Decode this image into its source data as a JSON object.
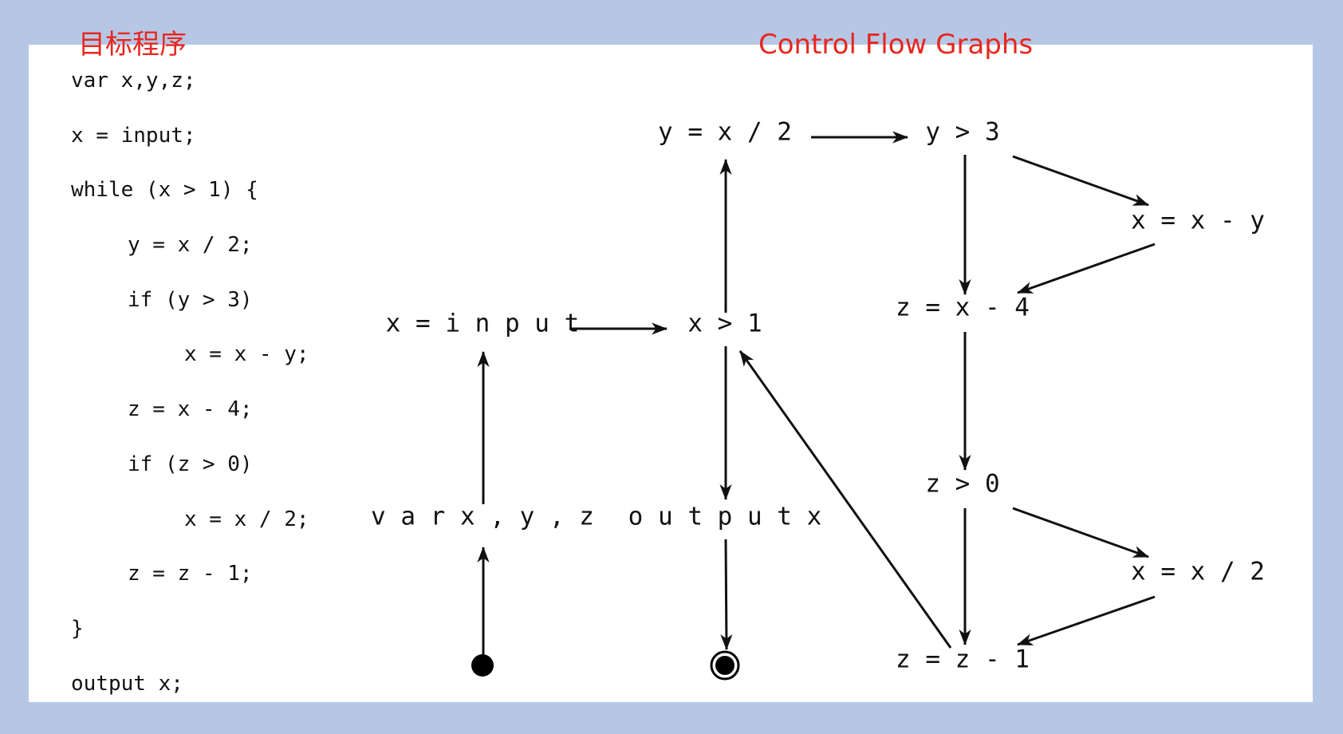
{
  "titles": {
    "program": "目标程序",
    "cfg": "Control Flow Graphs"
  },
  "code_lines": [
    {
      "indent": 0,
      "text": "var x,y,z;"
    },
    {
      "indent": 0,
      "text": "x = input;"
    },
    {
      "indent": 0,
      "text": "while (x > 1) {"
    },
    {
      "indent": 1,
      "text": "y = x / 2;"
    },
    {
      "indent": 1,
      "text": "if (y > 3)"
    },
    {
      "indent": 2,
      "text": "x = x - y;"
    },
    {
      "indent": 1,
      "text": "z = x - 4;"
    },
    {
      "indent": 1,
      "text": "if (z > 0)"
    },
    {
      "indent": 2,
      "text": "x = x / 2;"
    },
    {
      "indent": 1,
      "text": "z = z - 1;"
    },
    {
      "indent": 0,
      "text": "}"
    },
    {
      "indent": 0,
      "text": "output x;"
    }
  ],
  "cfg": {
    "nodes": [
      {
        "id": "start",
        "kind": "start"
      },
      {
        "id": "decl",
        "label": "var x, y, z"
      },
      {
        "id": "input",
        "label": "x = input"
      },
      {
        "id": "loop",
        "label": "x > 1"
      },
      {
        "id": "halve",
        "label": "y = x / 2"
      },
      {
        "id": "cond1",
        "label": "y > 3"
      },
      {
        "id": "sub",
        "label": "x = x - y"
      },
      {
        "id": "zassign",
        "label": "z = x - 4"
      },
      {
        "id": "cond2",
        "label": "z > 0"
      },
      {
        "id": "xdiv",
        "label": "x = x / 2"
      },
      {
        "id": "zdec",
        "label": "z = z - 1"
      },
      {
        "id": "output",
        "label": "output x"
      },
      {
        "id": "end",
        "kind": "end"
      }
    ],
    "edges": [
      {
        "from": "start",
        "to": "decl"
      },
      {
        "from": "decl",
        "to": "input"
      },
      {
        "from": "input",
        "to": "loop"
      },
      {
        "from": "loop",
        "to": "halve"
      },
      {
        "from": "loop",
        "to": "output"
      },
      {
        "from": "halve",
        "to": "cond1"
      },
      {
        "from": "cond1",
        "to": "sub"
      },
      {
        "from": "cond1",
        "to": "zassign"
      },
      {
        "from": "sub",
        "to": "zassign"
      },
      {
        "from": "zassign",
        "to": "cond2"
      },
      {
        "from": "cond2",
        "to": "xdiv"
      },
      {
        "from": "cond2",
        "to": "zdec"
      },
      {
        "from": "xdiv",
        "to": "zdec"
      },
      {
        "from": "zdec",
        "to": "loop"
      },
      {
        "from": "output",
        "to": "end"
      }
    ]
  }
}
